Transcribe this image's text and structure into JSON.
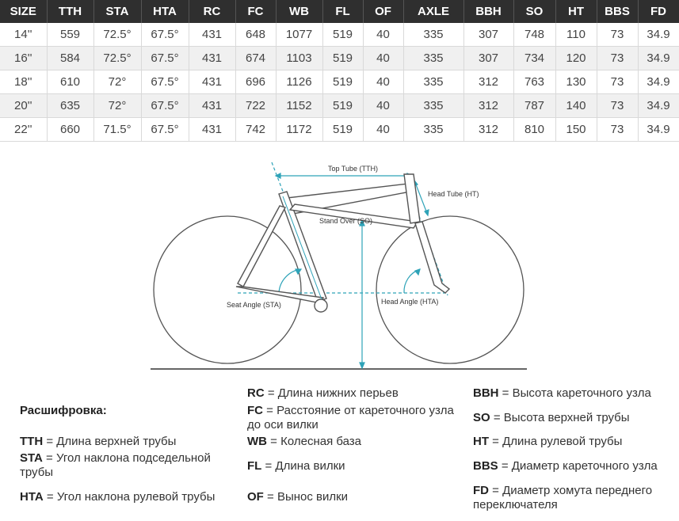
{
  "table": {
    "headers": [
      "SIZE",
      "TTH",
      "STA",
      "HTA",
      "RC",
      "FC",
      "WB",
      "FL",
      "OF",
      "AXLE",
      "BBH",
      "SO",
      "HT",
      "BBS",
      "FD"
    ],
    "rows": [
      [
        "14''",
        "559",
        "72.5°",
        "67.5°",
        "431",
        "648",
        "1077",
        "519",
        "40",
        "335",
        "307",
        "748",
        "110",
        "73",
        "34.9"
      ],
      [
        "16''",
        "584",
        "72.5°",
        "67.5°",
        "431",
        "674",
        "1103",
        "519",
        "40",
        "335",
        "307",
        "734",
        "120",
        "73",
        "34.9"
      ],
      [
        "18''",
        "610",
        "72°",
        "67.5°",
        "431",
        "696",
        "1126",
        "519",
        "40",
        "335",
        "312",
        "763",
        "130",
        "73",
        "34.9"
      ],
      [
        "20''",
        "635",
        "72°",
        "67.5°",
        "431",
        "722",
        "1152",
        "519",
        "40",
        "335",
        "312",
        "787",
        "140",
        "73",
        "34.9"
      ],
      [
        "22''",
        "660",
        "71.5°",
        "67.5°",
        "431",
        "742",
        "1172",
        "519",
        "40",
        "335",
        "312",
        "810",
        "150",
        "73",
        "34.9"
      ]
    ]
  },
  "diagram": {
    "labels": {
      "top_tube": "Top Tube (TTH)",
      "head_tube": "Head Tube (HT)",
      "stand_over": "Stand Over (SO)",
      "seat_angle": "Seat Angle (STA)",
      "head_angle": "Head Angle (HTA)"
    },
    "colors": {
      "frame": "#555555",
      "accent": "#2ea3b8",
      "ground": "#666666"
    }
  },
  "legend": {
    "title": "Расшифровка:",
    "items": {
      "tth": {
        "abbr": "TTH",
        "text": " = Длина верхней трубы"
      },
      "sta": {
        "abbr": "STA",
        "text": " = Угол наклона подседельной трубы"
      },
      "hta": {
        "abbr": "HTA",
        "text": " = Угол наклона рулевой трубы"
      },
      "rc": {
        "abbr": "RC",
        "text": " = Длина нижних перьев"
      },
      "fc": {
        "abbr": "FC",
        "text": " = Расстояние от кареточного узла до оси вилки"
      },
      "wb": {
        "abbr": "WB",
        "text": " = Колесная база"
      },
      "fl": {
        "abbr": "FL",
        "text": " = Длина вилки"
      },
      "of": {
        "abbr": "OF",
        "text": " = Вынос вилки"
      },
      "bbh": {
        "abbr": "BBH",
        "text": " = Высота кареточного узла"
      },
      "so": {
        "abbr": "SO",
        "text": " = Высота верхней трубы"
      },
      "ht": {
        "abbr": "HT",
        "text": " = Длина рулевой трубы"
      },
      "bbs": {
        "abbr": "BBS",
        "text": " = Диаметр кареточного узла"
      },
      "fd": {
        "abbr": "FD",
        "text": " = Диаметр хомута переднего переключателя"
      }
    }
  }
}
